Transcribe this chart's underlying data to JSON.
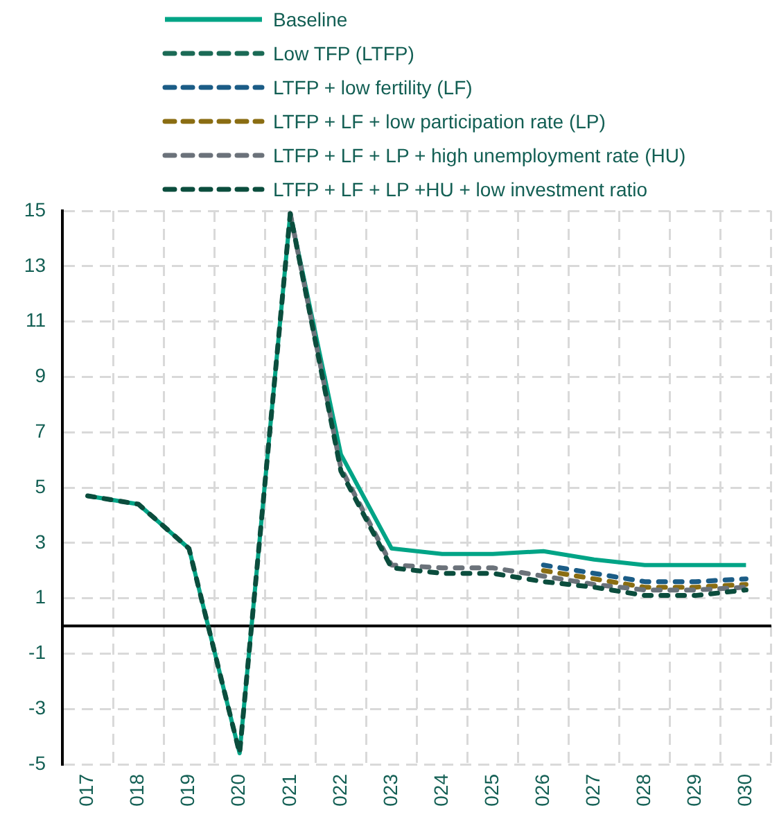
{
  "chart_data": {
    "type": "line",
    "categories": [
      "017",
      "018",
      "019",
      "020",
      "021",
      "022",
      "023",
      "024",
      "025",
      "026",
      "027",
      "028",
      "029",
      "030"
    ],
    "series": [
      {
        "name": "Baseline",
        "color": "#00a486",
        "line_style": "solid",
        "values": [
          4.7,
          4.4,
          2.8,
          -4.6,
          14.9,
          6.2,
          2.8,
          2.6,
          2.6,
          2.7,
          2.4,
          2.2,
          2.2,
          2.2
        ]
      },
      {
        "name": "Low TFP (LTFP)",
        "color": "#1b6a55",
        "line_style": "dashed",
        "values": [
          null,
          null,
          null,
          null,
          null,
          null,
          null,
          null,
          null,
          null,
          null,
          null,
          null,
          null
        ]
      },
      {
        "name": "LTFP + low fertility (LF)",
        "color": "#1b5c86",
        "line_style": "dashed",
        "values": [
          null,
          null,
          null,
          null,
          null,
          null,
          null,
          null,
          null,
          2.2,
          1.9,
          1.6,
          1.6,
          1.7
        ]
      },
      {
        "name": "LTFP + LF + low participation rate (LP)",
        "color": "#8a6d12",
        "line_style": "dashed",
        "values": [
          null,
          null,
          null,
          null,
          null,
          null,
          null,
          null,
          null,
          2.0,
          1.7,
          1.4,
          1.4,
          1.5
        ]
      },
      {
        "name": "LTFP + LF + LP + high unemployment rate (HU)",
        "color": "#6b727a",
        "line_style": "dashed",
        "values": [
          null,
          null,
          null,
          null,
          14.9,
          5.7,
          2.2,
          2.1,
          2.1,
          1.8,
          1.5,
          1.3,
          1.3,
          1.4
        ]
      },
      {
        "name": "LTFP + LF + LP +HU + low investment ratio",
        "color": "#0b4d3d",
        "line_style": "dashed",
        "values": [
          4.7,
          4.4,
          2.8,
          -4.6,
          14.9,
          5.6,
          2.1,
          1.9,
          1.9,
          1.6,
          1.4,
          1.1,
          1.1,
          1.3
        ]
      }
    ],
    "ylim": [
      -5,
      15
    ],
    "yticks": [
      -5,
      -3,
      -1,
      1,
      3,
      5,
      7,
      9,
      11,
      13,
      15
    ],
    "grid": true,
    "legend": "top",
    "marker": "none",
    "ref_lines": [
      {
        "axis": "y",
        "value": 0,
        "color": "#000000"
      }
    ]
  }
}
